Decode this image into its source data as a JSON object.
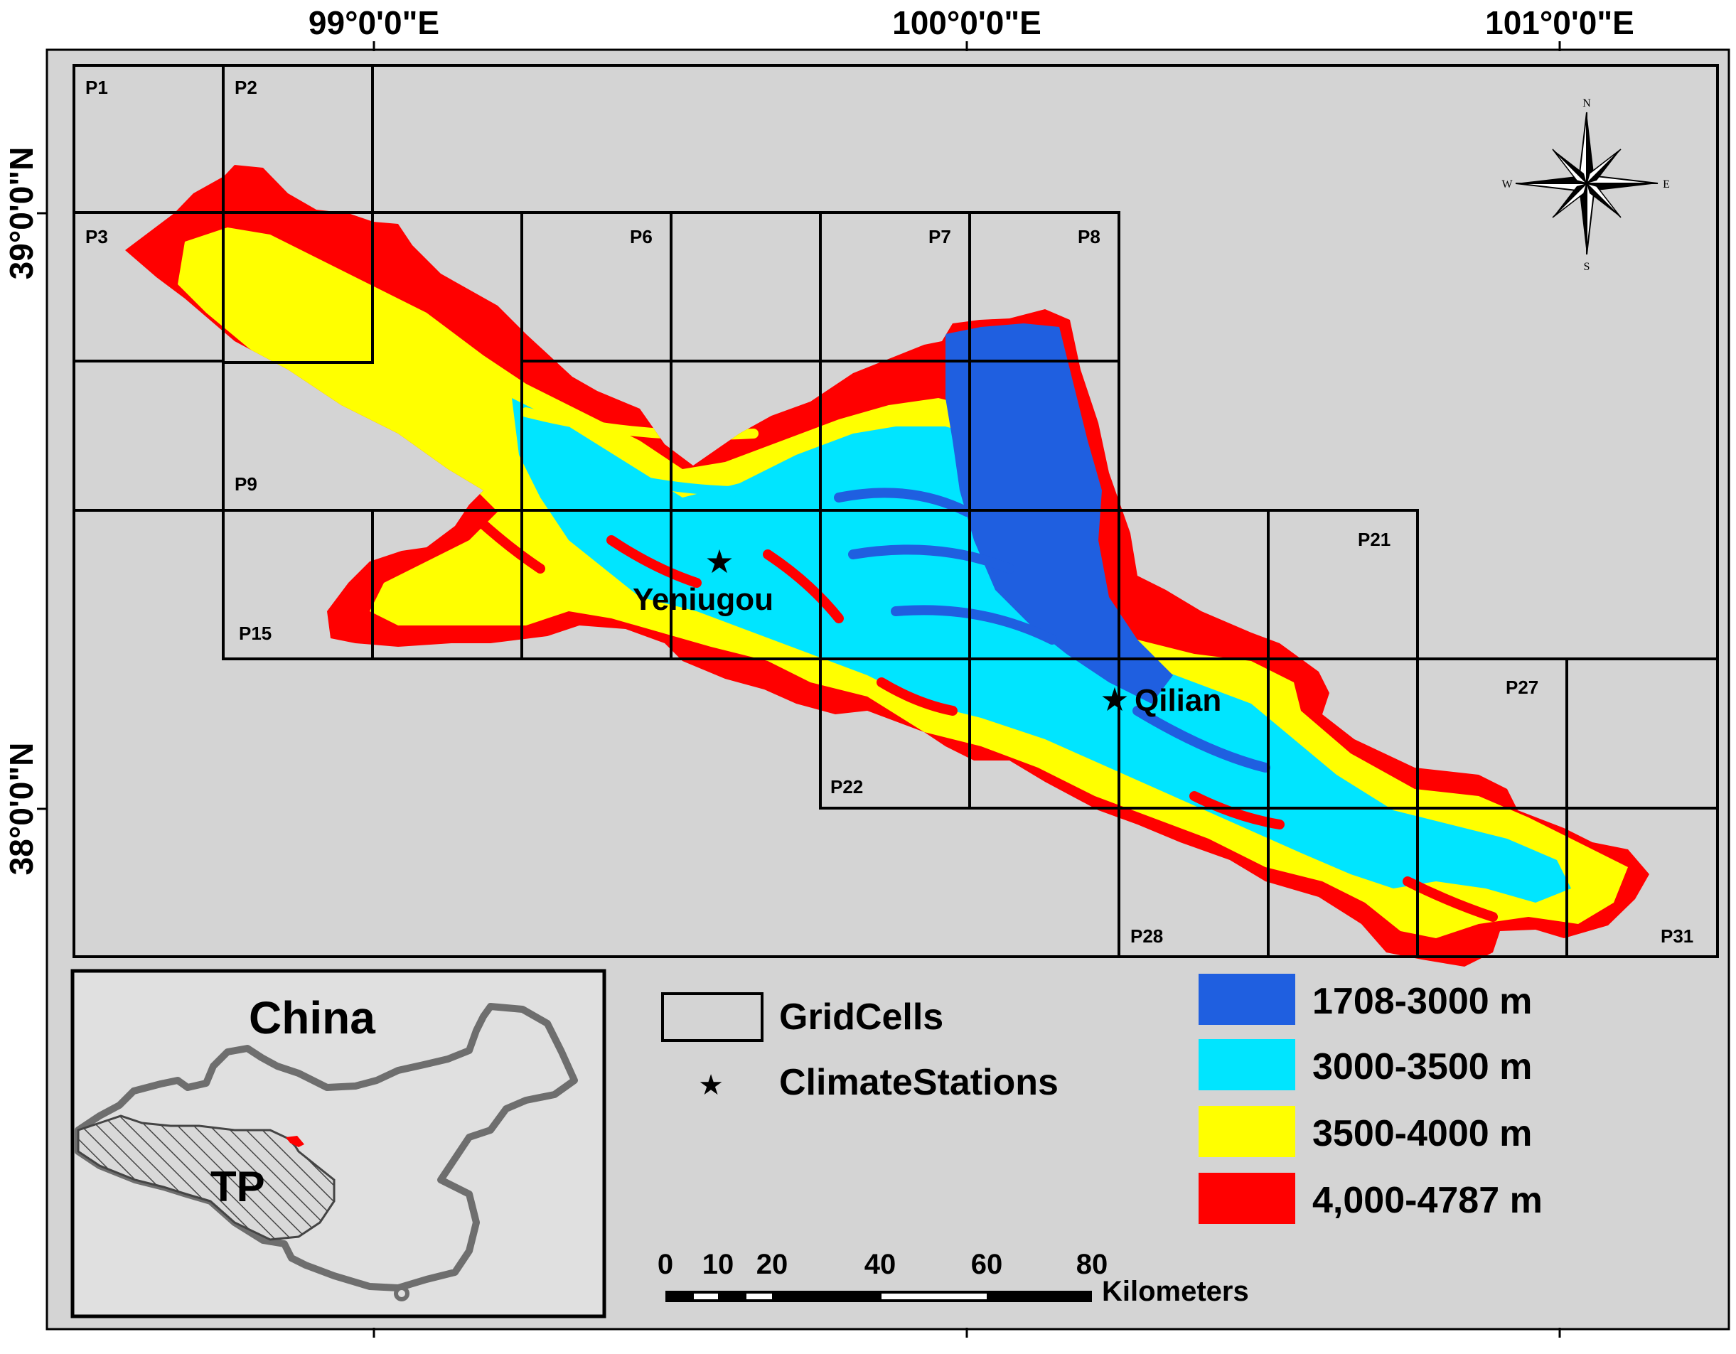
{
  "axes": {
    "longitude_labels": [
      "99°0'0\"E",
      "100°0'0\"E",
      "101°0'0\"E"
    ],
    "latitude_labels": [
      "39°0'0\"N",
      "38°0'0\"N"
    ]
  },
  "grid_cells": [
    "P1",
    "P2",
    "P3",
    "P6",
    "P7",
    "P8",
    "P9",
    "P15",
    "P21",
    "P22",
    "P27",
    "P28",
    "P31"
  ],
  "stations": [
    {
      "name": "Yeniugou",
      "symbol": "★"
    },
    {
      "name": "Qilian",
      "symbol": "★"
    }
  ],
  "compass": {
    "n": "N",
    "s": "S",
    "e": "E",
    "w": "W"
  },
  "legend": {
    "gridcells_label": "GridCells",
    "stations_label": "ClimateStations",
    "elevation_classes": [
      {
        "label": "1708-3000 m",
        "color": "#1f5fe0"
      },
      {
        "label": "3000-3500 m",
        "color": "#00e5ff"
      },
      {
        "label": "3500-4000 m",
        "color": "#ffff00"
      },
      {
        "label": "4,000-4787 m",
        "color": "#ff0000"
      }
    ]
  },
  "scale_bar": {
    "ticks": [
      "0",
      "10",
      "20",
      "40",
      "60",
      "80"
    ],
    "unit": "Kilometers"
  },
  "inset": {
    "title": "China",
    "region_label": "TP"
  },
  "colors": {
    "map_background": "#d4d4d4",
    "inset_background": "#e0e0e0",
    "china_border": "#6e6e6e",
    "study_area": "#ff0000"
  }
}
